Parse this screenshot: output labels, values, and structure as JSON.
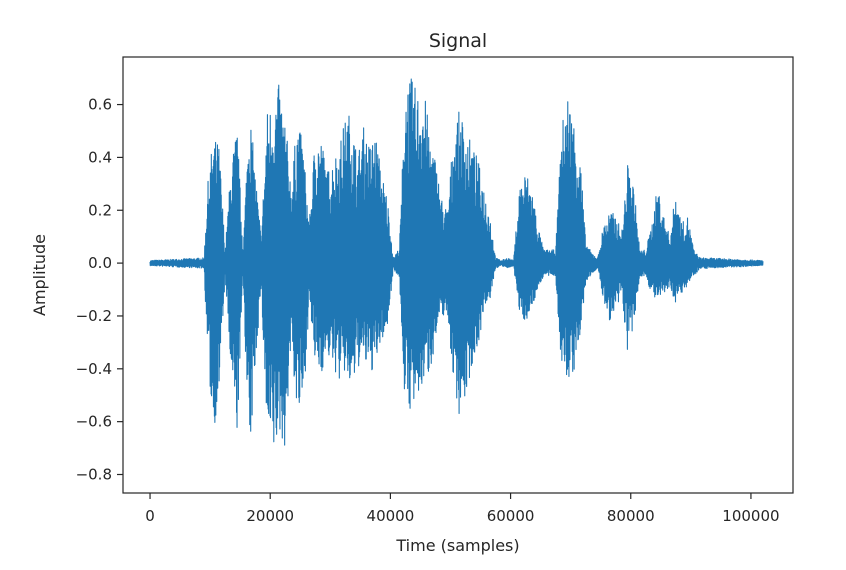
{
  "chart_data": {
    "type": "line",
    "title": "Signal",
    "xlabel": "Time (samples)",
    "ylabel": "Amplitude",
    "xlim": [
      -4500,
      107000
    ],
    "ylim": [
      -0.87,
      0.78
    ],
    "xticks": [
      0,
      20000,
      40000,
      60000,
      80000,
      100000
    ],
    "xtick_labels": [
      "0",
      "20000",
      "40000",
      "60000",
      "80000",
      "100000"
    ],
    "yticks": [
      -0.8,
      -0.6,
      -0.4,
      -0.2,
      0.0,
      0.2,
      0.4,
      0.6
    ],
    "ytick_labels": [
      "−0.8",
      "−0.6",
      "−0.4",
      "−0.2",
      "0.0",
      "0.2",
      "0.4",
      "0.6"
    ],
    "grid": false,
    "line_color": "#1f77b4",
    "series": [
      {
        "envelope_x": [
          0,
          9000,
          9500,
          10500,
          11500,
          12500,
          13500,
          14500,
          15500,
          16500,
          17500,
          18500,
          19500,
          20500,
          21500,
          22500,
          23500,
          24500,
          25500,
          26500,
          27500,
          28500,
          29500,
          30500,
          31500,
          32500,
          33500,
          34500,
          35500,
          36500,
          37500,
          38500,
          39500,
          40500,
          41500,
          42500,
          43500,
          44500,
          45500,
          46500,
          47500,
          48500,
          49500,
          50500,
          51500,
          52500,
          53500,
          54500,
          55500,
          56500,
          57500,
          58500,
          59500,
          60500,
          61500,
          62500,
          63500,
          64500,
          65500,
          66500,
          67500,
          68500,
          69500,
          70500,
          71500,
          72500,
          73500,
          74500,
          75500,
          76500,
          77500,
          78500,
          79500,
          80500,
          81500,
          82500,
          83500,
          84500,
          85500,
          86500,
          87500,
          88500,
          89500,
          90500,
          91500,
          92500,
          102000
        ],
        "envelope_max": [
          0.01,
          0.02,
          0.28,
          0.48,
          0.45,
          0.05,
          0.38,
          0.52,
          0.05,
          0.62,
          0.35,
          0.1,
          0.58,
          0.62,
          0.68,
          0.55,
          0.3,
          0.55,
          0.45,
          0.15,
          0.5,
          0.48,
          0.35,
          0.4,
          0.45,
          0.55,
          0.58,
          0.4,
          0.52,
          0.45,
          0.5,
          0.35,
          0.25,
          0.02,
          0.06,
          0.7,
          0.7,
          0.65,
          0.68,
          0.5,
          0.4,
          0.25,
          0.2,
          0.5,
          0.58,
          0.52,
          0.45,
          0.4,
          0.3,
          0.2,
          0.02,
          0.01,
          0.02,
          0.01,
          0.3,
          0.35,
          0.3,
          0.15,
          0.05,
          0.05,
          0.05,
          0.52,
          0.65,
          0.55,
          0.45,
          0.08,
          0.04,
          0.02,
          0.15,
          0.2,
          0.18,
          0.12,
          0.38,
          0.3,
          0.05,
          0.05,
          0.15,
          0.3,
          0.18,
          0.1,
          0.28,
          0.15,
          0.18,
          0.05,
          0.02,
          0.02,
          0.01
        ],
        "envelope_min": [
          -0.01,
          -0.02,
          -0.32,
          -0.65,
          -0.5,
          -0.05,
          -0.45,
          -0.66,
          -0.05,
          -0.8,
          -0.4,
          -0.1,
          -0.7,
          -0.75,
          -0.66,
          -0.7,
          -0.3,
          -0.6,
          -0.55,
          -0.15,
          -0.4,
          -0.42,
          -0.35,
          -0.4,
          -0.45,
          -0.42,
          -0.5,
          -0.4,
          -0.38,
          -0.42,
          -0.4,
          -0.3,
          -0.25,
          -0.02,
          -0.06,
          -0.58,
          -0.55,
          -0.56,
          -0.45,
          -0.42,
          -0.3,
          -0.2,
          -0.2,
          -0.45,
          -0.58,
          -0.52,
          -0.4,
          -0.32,
          -0.2,
          -0.15,
          -0.02,
          -0.01,
          -0.02,
          -0.01,
          -0.2,
          -0.22,
          -0.18,
          -0.1,
          -0.05,
          -0.05,
          -0.05,
          -0.42,
          -0.45,
          -0.42,
          -0.3,
          -0.08,
          -0.04,
          -0.02,
          -0.15,
          -0.22,
          -0.2,
          -0.12,
          -0.35,
          -0.25,
          -0.05,
          -0.05,
          -0.12,
          -0.15,
          -0.12,
          -0.1,
          -0.15,
          -0.12,
          -0.08,
          -0.05,
          -0.02,
          -0.02,
          -0.01
        ]
      }
    ]
  }
}
